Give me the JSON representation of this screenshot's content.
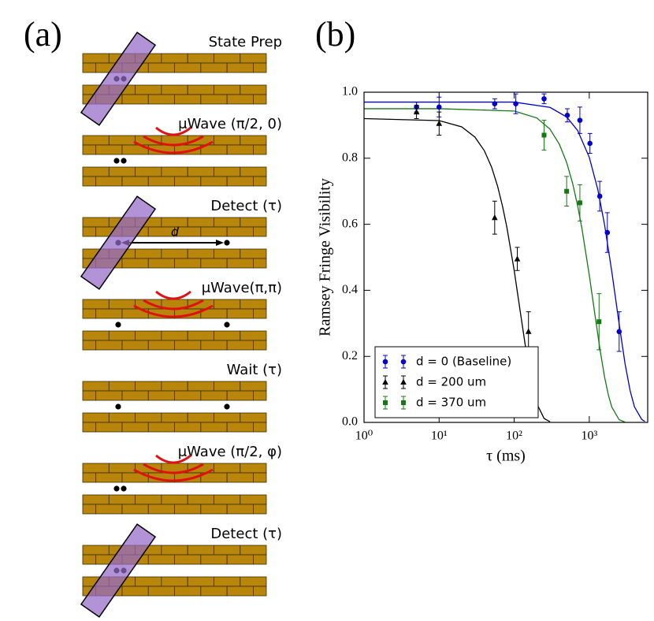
{
  "panel_labels": [
    "(a)",
    "(b)"
  ],
  "diagram": {
    "steps": [
      "State Prep",
      "μWave (π/2, 0)",
      "Detect (τ)",
      "μWave(π,π)",
      "Wait (τ)",
      "μWave (π/2, φ)",
      "Detect (τ)"
    ],
    "distance_label": "d"
  },
  "chart_data": {
    "type": "scatter",
    "xlabel": "τ (ms)",
    "ylabel": "Ramsey Fringe Visibility",
    "xscale": "log",
    "xlim": [
      1,
      6000
    ],
    "ylim": [
      0,
      1.0
    ],
    "xticks": [
      {
        "value": 1,
        "label": "10⁰"
      },
      {
        "value": 10,
        "label": "10¹"
      },
      {
        "value": 100,
        "label": "10²"
      },
      {
        "value": 1000,
        "label": "10³"
      }
    ],
    "yticks": [
      {
        "value": 0,
        "label": "0.0"
      },
      0.2,
      0.4,
      0.6,
      0.8,
      {
        "value": 1,
        "label": "1.0"
      }
    ],
    "legend": "lower left",
    "series": [
      {
        "name": "d = 0 (Baseline)",
        "color": "#0000cc",
        "marker": "circle",
        "x": [
          5,
          10,
          55,
          105,
          250,
          510,
          750,
          1020,
          1380,
          1740,
          2500
        ],
        "values": [
          0.955,
          0.955,
          0.965,
          0.965,
          0.98,
          0.93,
          0.915,
          0.845,
          0.685,
          0.575,
          0.275
        ],
        "errors": [
          0.015,
          0.03,
          0.015,
          0.03,
          0.015,
          0.02,
          0.04,
          0.03,
          0.045,
          0.06,
          0.06
        ]
      },
      {
        "name": "d = 200 um",
        "color": "#000000",
        "marker": "triangle",
        "x": [
          5,
          10,
          55,
          110,
          155
        ],
        "values": [
          0.94,
          0.905,
          0.62,
          0.495,
          0.275
        ],
        "errors": [
          0.02,
          0.035,
          0.05,
          0.035,
          0.06
        ]
      },
      {
        "name": "d = 370 um",
        "color": "#147814",
        "marker": "square",
        "x": [
          250,
          500,
          750,
          1350
        ],
        "values": [
          0.87,
          0.7,
          0.665,
          0.305
        ],
        "errors": [
          0.045,
          0.045,
          0.055,
          0.085
        ]
      }
    ],
    "fits": [
      {
        "color": "#0000cc",
        "x": [
          1,
          10,
          100,
          300,
          500,
          700,
          1000,
          1300,
          1600,
          2000,
          2500,
          3000,
          3500,
          4000,
          5000,
          5500
        ],
        "values": [
          0.97,
          0.97,
          0.97,
          0.954,
          0.925,
          0.884,
          0.803,
          0.705,
          0.598,
          0.455,
          0.298,
          0.177,
          0.096,
          0.047,
          0.009,
          0.003
        ]
      },
      {
        "color": "#000000",
        "x": [
          1,
          10,
          20,
          30,
          40,
          50,
          60,
          70,
          80,
          100,
          120,
          140,
          160,
          180,
          200,
          250,
          300
        ],
        "values": [
          0.92,
          0.914,
          0.895,
          0.864,
          0.823,
          0.773,
          0.716,
          0.654,
          0.59,
          0.46,
          0.338,
          0.236,
          0.155,
          0.097,
          0.057,
          0.012,
          0.002
        ]
      },
      {
        "color": "#147814",
        "x": [
          1,
          10,
          100,
          200,
          300,
          400,
          500,
          600,
          700,
          800,
          1000,
          1200,
          1400,
          1600,
          1800,
          2000,
          2500,
          3000
        ],
        "values": [
          0.95,
          0.95,
          0.943,
          0.922,
          0.888,
          0.842,
          0.787,
          0.724,
          0.656,
          0.586,
          0.446,
          0.32,
          0.216,
          0.137,
          0.082,
          0.046,
          0.008,
          0.001
        ]
      }
    ]
  }
}
